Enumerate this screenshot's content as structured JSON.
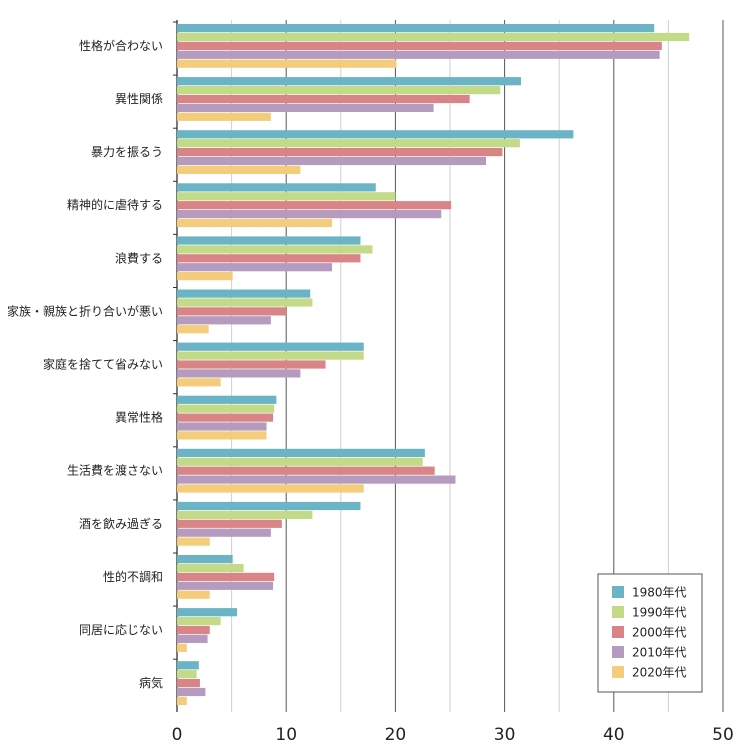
{
  "chart_data": {
    "type": "bar",
    "orientation": "horizontal",
    "categories": [
      "性格が合わない",
      "異性関係",
      "暴力を振るう",
      "精神的に虐待する",
      "浪費する",
      "家族・親族と折り合いが悪い",
      "家庭を捨てて省みない",
      "異常性格",
      "生活費を渡さない",
      "酒を飲み過ぎる",
      "性的不調和",
      "同居に応じない",
      "病気"
    ],
    "series": [
      {
        "name": "1980年代",
        "color": "#6ab4c6",
        "values": [
          43.7,
          31.5,
          36.3,
          18.2,
          16.8,
          12.2,
          17.1,
          9.1,
          22.7,
          16.8,
          5.1,
          5.5,
          2.0
        ]
      },
      {
        "name": "1990年代",
        "color": "#c3da88",
        "values": [
          46.9,
          29.6,
          31.4,
          20.0,
          17.9,
          12.4,
          17.1,
          8.9,
          22.5,
          12.4,
          6.1,
          4.0,
          1.8
        ]
      },
      {
        "name": "2000年代",
        "color": "#d98486",
        "values": [
          44.4,
          26.8,
          29.8,
          25.1,
          16.8,
          10.0,
          13.6,
          8.8,
          23.6,
          9.6,
          8.9,
          3.0,
          2.1
        ]
      },
      {
        "name": "2010年代",
        "color": "#b59cbf",
        "values": [
          44.2,
          23.5,
          28.3,
          24.2,
          14.2,
          8.6,
          11.3,
          8.2,
          25.5,
          8.6,
          8.8,
          2.8,
          2.6
        ]
      },
      {
        "name": "2020年代",
        "color": "#f3cd7c",
        "values": [
          20.1,
          8.6,
          11.3,
          14.2,
          5.1,
          2.9,
          4.0,
          8.2,
          17.1,
          3.0,
          3.0,
          0.9,
          0.9
        ]
      }
    ],
    "xlim": [
      0,
      50
    ],
    "xticks": [
      0,
      10,
      20,
      30,
      40,
      50
    ],
    "title": "",
    "xlabel": "",
    "ylabel": "",
    "grid": true,
    "legend_position": "bottom-right"
  }
}
